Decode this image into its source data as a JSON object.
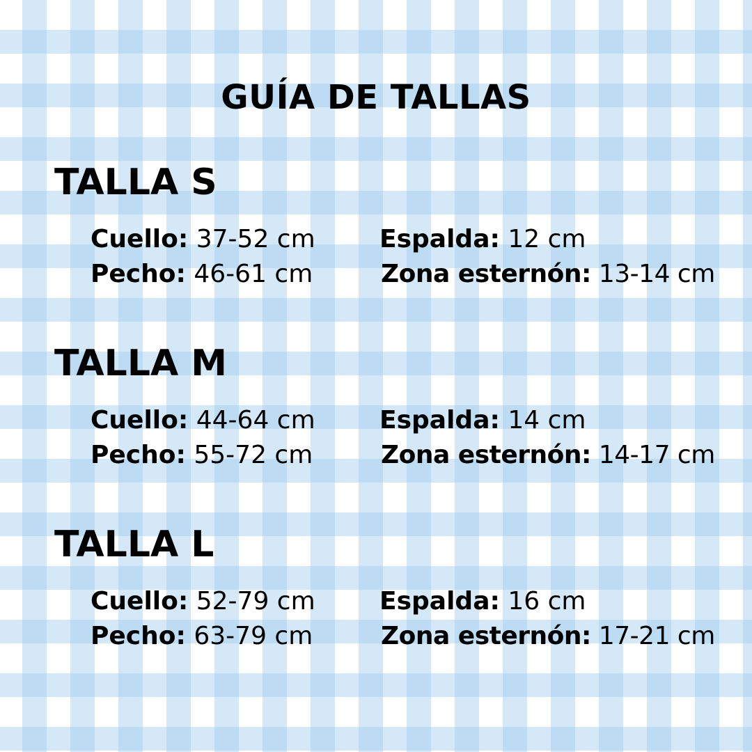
{
  "title": "GUÍA DE TALLAS",
  "colors": {
    "gingham": "#c9e3f6",
    "text": "#000000"
  },
  "sizes": [
    {
      "name": "TALLA S",
      "cuello_label": "Cuello:",
      "cuello": "37-52 cm",
      "espalda_label": "Espalda:",
      "espalda": "12 cm",
      "pecho_label": "Pecho:",
      "pecho": "46-61 cm",
      "esternon_label": "Zona esternón:",
      "esternon": "13-14 cm"
    },
    {
      "name": "TALLA M",
      "cuello_label": "Cuello:",
      "cuello": "44-64 cm",
      "espalda_label": "Espalda:",
      "espalda": "14 cm",
      "pecho_label": "Pecho:",
      "pecho": "55-72 cm",
      "esternon_label": "Zona esternón:",
      "esternon": "14-17 cm"
    },
    {
      "name": "TALLA L",
      "cuello_label": "Cuello:",
      "cuello": "52-79 cm",
      "espalda_label": "Espalda:",
      "espalda": "16 cm",
      "pecho_label": "Pecho:",
      "pecho": "63-79 cm",
      "esternon_label": "Zona esternón:",
      "esternon": "17-21 cm"
    }
  ]
}
